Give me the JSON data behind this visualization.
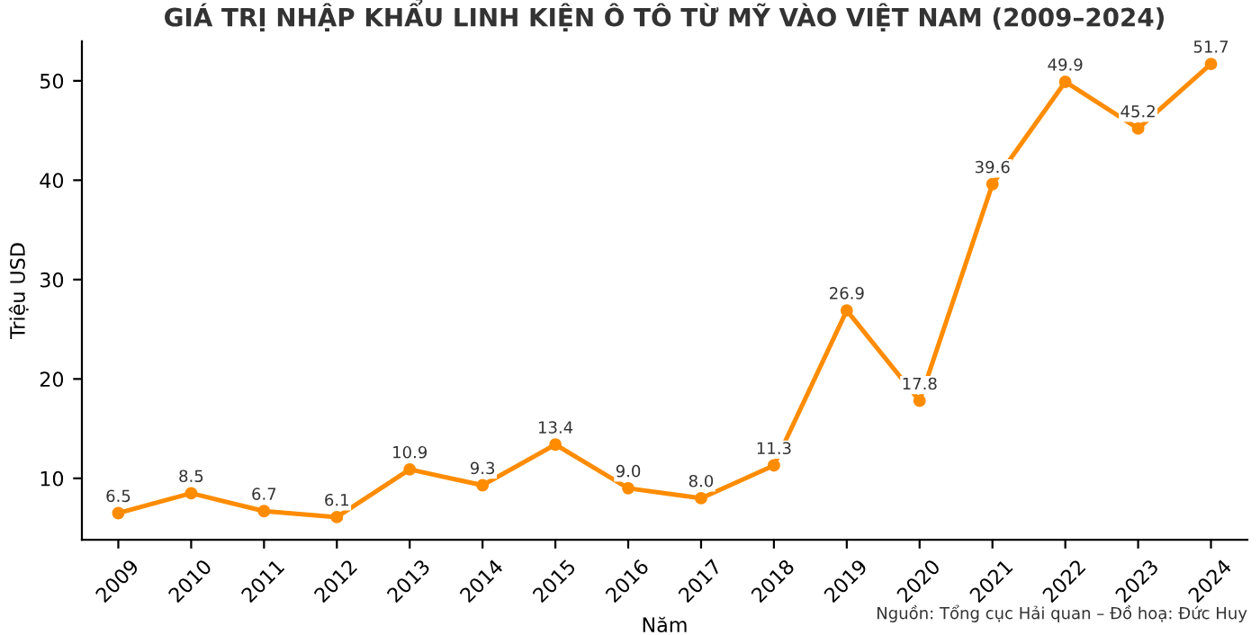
{
  "chart_data": {
    "type": "line",
    "title": "GIÁ TRỊ NHẬP KHẨU LINH KIỆN Ô TÔ TỪ MỸ VÀO VIỆT NAM (2009–2024)",
    "xlabel": "Năm",
    "ylabel": "Triệu USD",
    "categories": [
      "2009",
      "2010",
      "2011",
      "2012",
      "2013",
      "2014",
      "2015",
      "2016",
      "2017",
      "2018",
      "2019",
      "2020",
      "2021",
      "2022",
      "2023",
      "2024"
    ],
    "series": [
      {
        "color": "#ff8c00",
        "values": [
          6.5,
          8.5,
          6.7,
          6.1,
          10.9,
          9.3,
          13.4,
          9.0,
          8.0,
          11.3,
          26.9,
          17.8,
          39.6,
          49.9,
          45.2,
          51.7
        ]
      }
    ],
    "value_labels": [
      "6.5",
      "8.5",
      "6.7",
      "6.1",
      "10.9",
      "9.3",
      "13.4",
      "9.0",
      "8.0",
      "11.3",
      "26.9",
      "17.8",
      "39.6",
      "49.9",
      "45.2",
      "51.7"
    ],
    "ylim": [
      3.82,
      53.98
    ],
    "yticks": [
      10,
      20,
      30,
      40,
      50
    ],
    "grid": false,
    "legend": false,
    "marker": "circle",
    "line_style": "solid",
    "annotations": [
      "Nguồn: Tổng cục Hải quan – Đồ hoạ: Đức Huy"
    ]
  }
}
